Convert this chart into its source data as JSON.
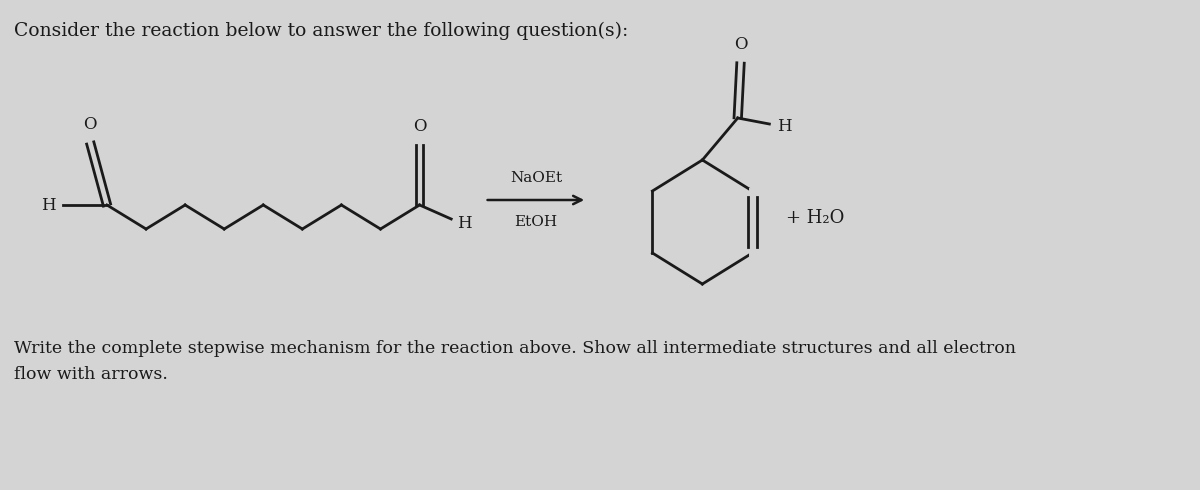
{
  "bg_color": "#d4d4d4",
  "title_text": "Consider the reaction below to answer the following question(s):",
  "bottom_text": "Write the complete stepwise mechanism for the reaction above. Show all intermediate structures and all electron\nflow with arrows.",
  "reagent_text": "NaOEt",
  "solvent_text": "EtOH",
  "plus_h2o": "+ H₂O",
  "line_color": "#1a1a1a",
  "text_color": "#1a1a1a",
  "figw": 12.0,
  "figh": 4.9,
  "dpi": 100
}
